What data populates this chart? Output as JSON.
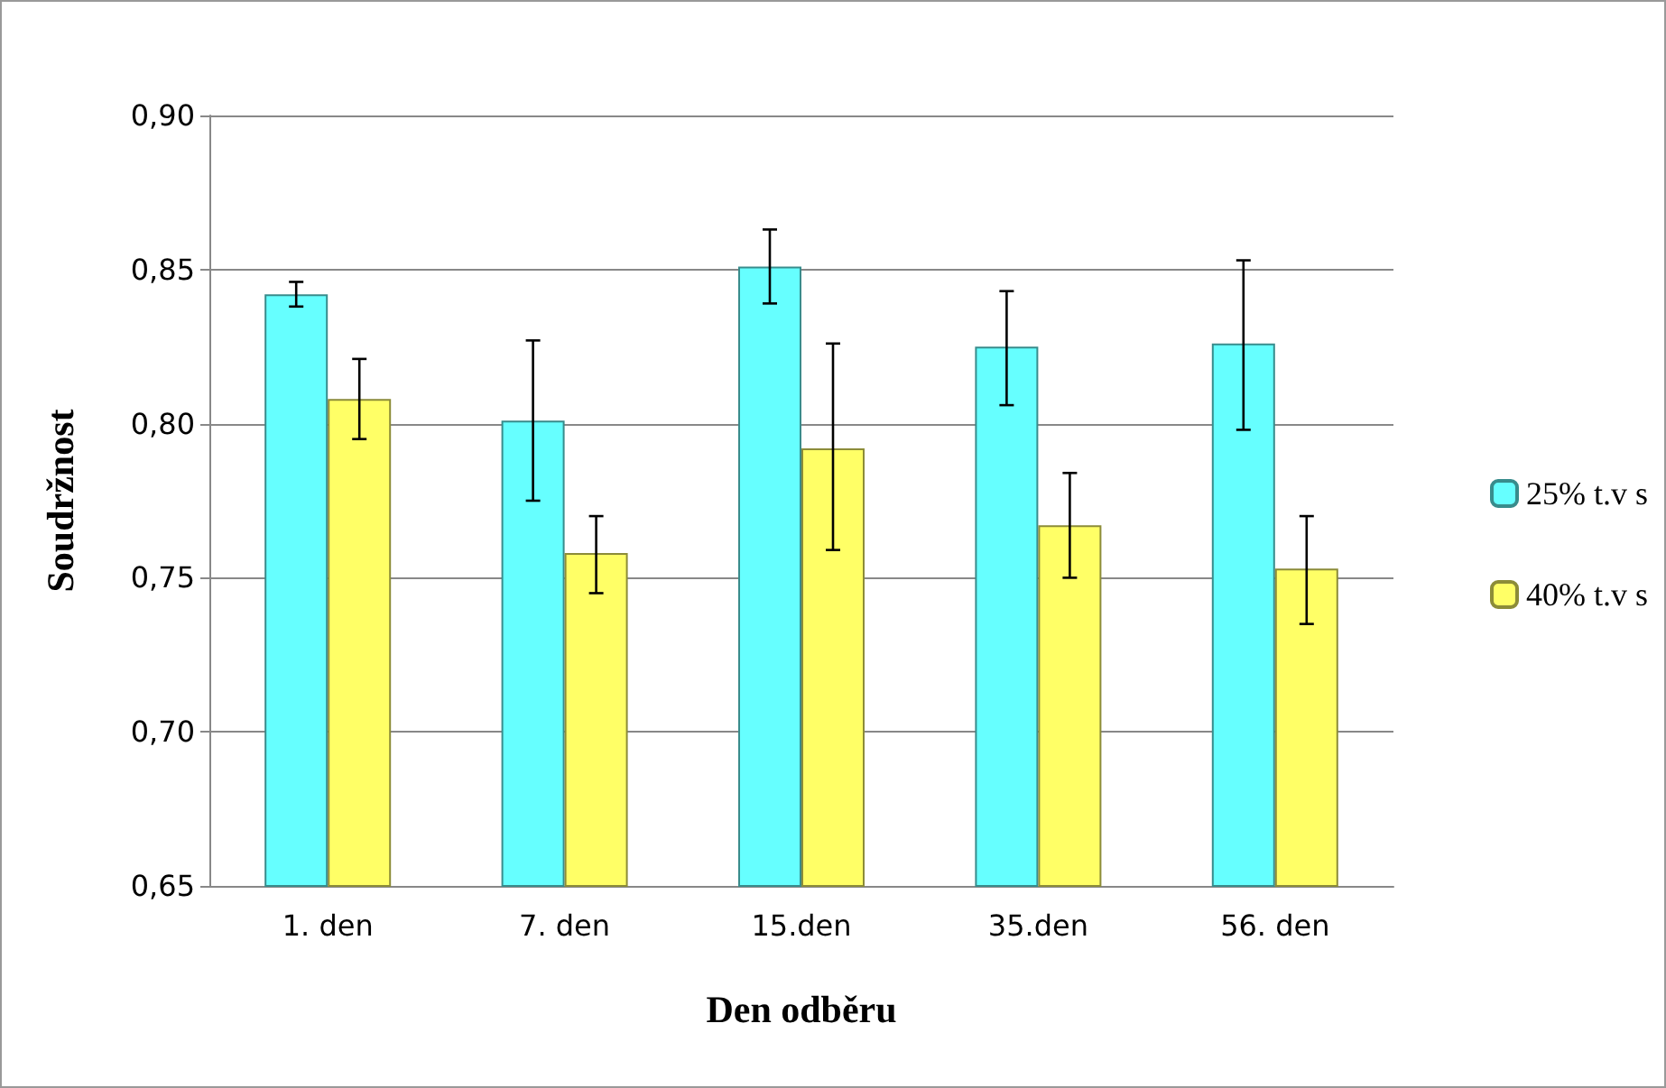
{
  "chart_data": {
    "type": "bar",
    "xlabel": "Den odběru",
    "ylabel": "Soudržnost",
    "categories": [
      "1. den",
      "7. den",
      "15.den",
      "35.den",
      "56. den"
    ],
    "series": [
      {
        "name": "25% t.v s",
        "color": "#66ffff",
        "values": [
          0.842,
          0.801,
          0.851,
          0.825,
          0.826
        ],
        "errors": [
          [
            0.838,
            0.846
          ],
          [
            0.775,
            0.827
          ],
          [
            0.839,
            0.863
          ],
          [
            0.806,
            0.843
          ],
          [
            0.798,
            0.853
          ]
        ]
      },
      {
        "name": "40% t.v s",
        "color": "#ffff66",
        "values": [
          0.808,
          0.758,
          0.792,
          0.767,
          0.753
        ],
        "errors": [
          [
            0.795,
            0.821
          ],
          [
            0.745,
            0.77
          ],
          [
            0.759,
            0.826
          ],
          [
            0.75,
            0.784
          ],
          [
            0.735,
            0.77
          ]
        ]
      }
    ],
    "ylim": [
      0.65,
      0.9
    ],
    "yticks": [
      {
        "value": 0.65,
        "label": "0,65"
      },
      {
        "value": 0.7,
        "label": "0,70"
      },
      {
        "value": 0.75,
        "label": "0,75"
      },
      {
        "value": 0.8,
        "label": "0,80"
      },
      {
        "value": 0.85,
        "label": "0,85"
      },
      {
        "value": 0.9,
        "label": "0,90"
      }
    ],
    "grid": "y",
    "legend": "right"
  }
}
